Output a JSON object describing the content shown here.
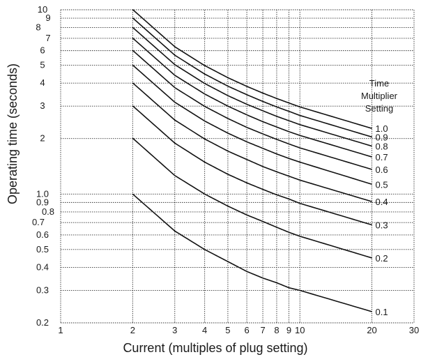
{
  "chart_data": {
    "type": "line",
    "x_scale": "log",
    "y_scale": "log",
    "xlim": [
      1,
      30
    ],
    "ylim": [
      0.2,
      10
    ],
    "grid": true,
    "xlabel": "Current (multiples of plug setting)",
    "ylabel": "Operating time (seconds)",
    "x_ticks": [
      {
        "value": 1,
        "label": "1"
      },
      {
        "value": 2,
        "label": "2"
      },
      {
        "value": 3,
        "label": "3"
      },
      {
        "value": 4,
        "label": "4"
      },
      {
        "value": 5,
        "label": "5"
      },
      {
        "value": 6,
        "label": "6"
      },
      {
        "value": 7,
        "label": "7"
      },
      {
        "value": 8,
        "label": "8"
      },
      {
        "value": 9,
        "label": "9"
      },
      {
        "value": 10,
        "label": "10"
      },
      {
        "value": 20,
        "label": "20"
      },
      {
        "value": 30,
        "label": "30"
      }
    ],
    "y_ticks": [
      {
        "value": 0.2,
        "label": "0.2"
      },
      {
        "value": 0.3,
        "label": "0.3"
      },
      {
        "value": 0.4,
        "label": "0.4"
      },
      {
        "value": 0.5,
        "label": "0.5"
      },
      {
        "value": 0.6,
        "label": "0.6"
      },
      {
        "value": 0.7,
        "label": "0.7"
      },
      {
        "value": 0.8,
        "label": "0.8"
      },
      {
        "value": 0.9,
        "label": "0.9"
      },
      {
        "value": 1,
        "label": "1.0"
      },
      {
        "value": 2,
        "label": "2"
      },
      {
        "value": 3,
        "label": "3"
      },
      {
        "value": 4,
        "label": "4"
      },
      {
        "value": 5,
        "label": "5"
      },
      {
        "value": 6,
        "label": "6"
      },
      {
        "value": 7,
        "label": "7"
      },
      {
        "value": 8,
        "label": "8"
      },
      {
        "value": 9,
        "label": "9"
      },
      {
        "value": 10,
        "label": "10"
      }
    ],
    "curve_annotation": [
      "Time",
      "Multiplier",
      "Setting"
    ],
    "x": [
      2,
      3,
      4,
      5,
      6,
      7,
      8,
      9,
      10,
      20
    ],
    "series": [
      {
        "name": "1.0",
        "values": [
          10.03,
          6.3,
          4.98,
          4.28,
          3.84,
          3.53,
          3.3,
          3.12,
          2.97,
          2.27
        ]
      },
      {
        "name": "0.9",
        "values": [
          9.03,
          5.67,
          4.48,
          3.85,
          3.46,
          3.18,
          2.97,
          2.81,
          2.67,
          2.04
        ]
      },
      {
        "name": "0.8",
        "values": [
          8.02,
          5.04,
          3.98,
          3.42,
          3.07,
          2.83,
          2.64,
          2.5,
          2.38,
          1.82
        ]
      },
      {
        "name": "0.7",
        "values": [
          7.02,
          4.41,
          3.49,
          3.0,
          2.69,
          2.47,
          2.31,
          2.18,
          2.08,
          1.59
        ]
      },
      {
        "name": "0.6",
        "values": [
          6.02,
          3.78,
          2.99,
          2.57,
          2.3,
          2.12,
          1.98,
          1.87,
          1.78,
          1.36
        ]
      },
      {
        "name": "0.5",
        "values": [
          5.01,
          3.15,
          2.49,
          2.14,
          1.92,
          1.77,
          1.65,
          1.56,
          1.49,
          1.13
        ]
      },
      {
        "name": "0.4",
        "values": [
          4.01,
          2.52,
          1.99,
          1.71,
          1.54,
          1.41,
          1.32,
          1.25,
          1.19,
          0.91
        ]
      },
      {
        "name": "0.3",
        "values": [
          3.01,
          1.89,
          1.49,
          1.28,
          1.15,
          1.06,
          0.99,
          0.94,
          0.89,
          0.68
        ]
      },
      {
        "name": "0.2",
        "values": [
          2.01,
          1.26,
          1.0,
          0.86,
          0.77,
          0.71,
          0.66,
          0.62,
          0.59,
          0.45
        ]
      },
      {
        "name": "0.1",
        "values": [
          1.0,
          0.63,
          0.5,
          0.43,
          0.38,
          0.35,
          0.33,
          0.31,
          0.3,
          0.23
        ]
      }
    ]
  }
}
